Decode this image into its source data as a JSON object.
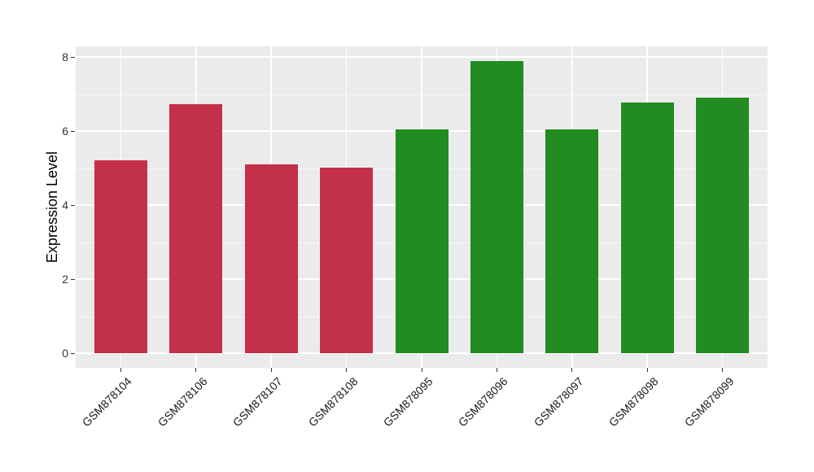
{
  "figure": {
    "background": "#FFFFFF"
  },
  "chart_data": {
    "type": "bar",
    "title": "",
    "xlabel": "",
    "ylabel": "Expression Level",
    "categories": [
      "GSM878104",
      "GSM878106",
      "GSM878107",
      "GSM878108",
      "GSM878095",
      "GSM878096",
      "GSM878097",
      "GSM878098",
      "GSM878099"
    ],
    "values": [
      5.21,
      6.73,
      5.1,
      5.02,
      6.04,
      7.89,
      6.04,
      6.78,
      6.9
    ],
    "bar_colors": [
      "#C33049",
      "#C33049",
      "#C33049",
      "#C33049",
      "#228B22",
      "#228B22",
      "#228B22",
      "#228B22",
      "#228B22"
    ],
    "group_colors": {
      "red_group": "#C33049",
      "green_group": "#228B22"
    },
    "y_ticks": [
      0,
      2,
      4,
      6,
      8
    ],
    "y_minor_gridlines": [
      1,
      3,
      5,
      7
    ],
    "ylim": [
      -0.4,
      8.3
    ],
    "bar_width_fraction": 0.7,
    "x_label_angle_deg": 45,
    "legend_position": "none",
    "panel_background": "#EBEBEB",
    "gridline_color": "#FFFFFF",
    "axis_text_color": "#333333",
    "grid": "horizontal major+minor, vertical at category centers"
  }
}
